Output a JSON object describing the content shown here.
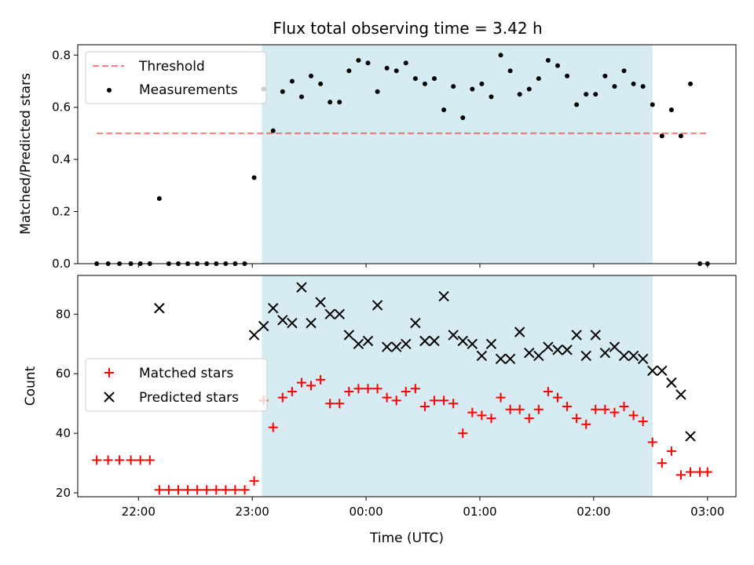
{
  "chart_data": [
    {
      "type": "scatter",
      "title": "Flux total observing time = 3.42 h",
      "xlabel": "",
      "ylabel": "Matched/Predicted stars",
      "xlim": [
        "21:28",
        "03:15"
      ],
      "ylim": [
        0,
        0.84
      ],
      "yticks": [
        "0.0",
        "0.2",
        "0.4",
        "0.6",
        "0.8"
      ],
      "legend_position": "upper-left",
      "shaded_interval": [
        "23:05",
        "02:31"
      ],
      "shade_color": "#add8e6",
      "threshold": {
        "name": "Threshold",
        "value": 0.5,
        "x_range": [
          "21:38",
          "03:00"
        ],
        "color": "#ff0000",
        "style": "dashed"
      },
      "series": [
        {
          "name": "Measurements",
          "color": "#000000",
          "marker": "dot",
          "x": [
            "21:38",
            "21:44",
            "21:50",
            "21:56",
            "22:01",
            "22:06",
            "22:11",
            "22:16",
            "22:21",
            "22:26",
            "22:31",
            "22:36",
            "22:41",
            "22:46",
            "22:51",
            "22:56",
            "23:01",
            "23:06",
            "23:11",
            "23:16",
            "23:21",
            "23:26",
            "23:31",
            "23:36",
            "23:41",
            "23:46",
            "23:51",
            "23:56",
            "00:01",
            "00:06",
            "00:11",
            "00:16",
            "00:21",
            "00:26",
            "00:31",
            "00:36",
            "00:41",
            "00:46",
            "00:51",
            "00:56",
            "01:01",
            "01:06",
            "01:11",
            "01:16",
            "01:21",
            "01:26",
            "01:31",
            "01:36",
            "01:41",
            "01:46",
            "01:51",
            "01:56",
            "02:01",
            "02:06",
            "02:11",
            "02:16",
            "02:21",
            "02:26",
            "02:31",
            "02:36",
            "02:41",
            "02:46",
            "02:51",
            "02:56",
            "03:00"
          ],
          "y": [
            0,
            0,
            0,
            0,
            0,
            0,
            0.25,
            0,
            0,
            0,
            0,
            0,
            0,
            0,
            0,
            0,
            0.33,
            0.67,
            0.51,
            0.66,
            0.7,
            0.64,
            0.72,
            0.69,
            0.62,
            0.62,
            0.74,
            0.78,
            0.77,
            0.66,
            0.75,
            0.74,
            0.77,
            0.71,
            0.69,
            0.71,
            0.59,
            0.68,
            0.56,
            0.67,
            0.69,
            0.64,
            0.8,
            0.74,
            0.65,
            0.67,
            0.71,
            0.78,
            0.76,
            0.72,
            0.61,
            0.65,
            0.65,
            0.72,
            0.68,
            0.74,
            0.69,
            0.68,
            0.61,
            0.49,
            0.59,
            0.49,
            0.69,
            0,
            0
          ]
        }
      ]
    },
    {
      "type": "scatter",
      "title": "",
      "xlabel": "Time (UTC)",
      "ylabel": "Count",
      "xlim": [
        "21:28",
        "03:15"
      ],
      "ylim": [
        18.7,
        93
      ],
      "yticks": [
        "20",
        "40",
        "60",
        "80"
      ],
      "xticks": [
        "22:00",
        "23:00",
        "00:00",
        "01:00",
        "02:00",
        "03:00"
      ],
      "legend_position": "center-left",
      "shaded_interval": [
        "23:05",
        "02:31"
      ],
      "series": [
        {
          "name": "Matched stars",
          "color": "#ff0000",
          "marker": "plus",
          "x": [
            "21:38",
            "21:44",
            "21:50",
            "21:56",
            "22:01",
            "22:06",
            "22:11",
            "22:16",
            "22:21",
            "22:26",
            "22:31",
            "22:36",
            "22:41",
            "22:46",
            "22:51",
            "22:56",
            "23:01",
            "23:06",
            "23:11",
            "23:16",
            "23:21",
            "23:26",
            "23:31",
            "23:36",
            "23:41",
            "23:46",
            "23:51",
            "23:56",
            "00:01",
            "00:06",
            "00:11",
            "00:16",
            "00:21",
            "00:26",
            "00:31",
            "00:36",
            "00:41",
            "00:46",
            "00:51",
            "00:56",
            "01:01",
            "01:06",
            "01:11",
            "01:16",
            "01:21",
            "01:26",
            "01:31",
            "01:36",
            "01:41",
            "01:46",
            "01:51",
            "01:56",
            "02:01",
            "02:06",
            "02:11",
            "02:16",
            "02:21",
            "02:26",
            "02:31",
            "02:36",
            "02:41",
            "02:46",
            "02:51",
            "02:56",
            "03:00"
          ],
          "y": [
            31,
            31,
            31,
            31,
            31,
            31,
            21,
            21,
            21,
            21,
            21,
            21,
            21,
            21,
            21,
            21,
            24,
            51,
            42,
            52,
            54,
            57,
            56,
            58,
            50,
            50,
            54,
            55,
            55,
            55,
            52,
            51,
            54,
            55,
            49,
            51,
            51,
            50,
            40,
            47,
            46,
            45,
            52,
            48,
            48,
            45,
            48,
            54,
            52,
            49,
            45,
            43,
            48,
            48,
            47,
            49,
            46,
            44,
            37,
            30,
            34,
            26,
            27,
            27,
            27
          ]
        },
        {
          "name": "Predicted stars",
          "color": "#000000",
          "marker": "x",
          "x": [
            "23:01",
            "23:06",
            "23:11",
            "23:16",
            "23:21",
            "23:26",
            "23:31",
            "23:36",
            "23:41",
            "23:46",
            "23:51",
            "23:56",
            "00:01",
            "00:06",
            "00:11",
            "00:16",
            "00:21",
            "00:26",
            "00:31",
            "00:36",
            "00:41",
            "00:46",
            "00:51",
            "00:56",
            "01:01",
            "01:06",
            "01:11",
            "01:16",
            "01:21",
            "01:26",
            "01:31",
            "01:36",
            "01:41",
            "01:46",
            "01:51",
            "01:56",
            "02:01",
            "02:06",
            "02:11",
            "02:16",
            "02:21",
            "02:26",
            "02:31",
            "02:36",
            "02:41",
            "02:46",
            "02:51",
            "22:11"
          ],
          "y": [
            73,
            76,
            82,
            78,
            77,
            89,
            77,
            84,
            80,
            80,
            73,
            70,
            71,
            83,
            69,
            69,
            70,
            77,
            71,
            71,
            86,
            73,
            71,
            70,
            66,
            70,
            65,
            65,
            74,
            67,
            66,
            69,
            68,
            68,
            73,
            66,
            73,
            67,
            69,
            66,
            66,
            65,
            61,
            61,
            57,
            53,
            39,
            82
          ]
        }
      ]
    }
  ]
}
